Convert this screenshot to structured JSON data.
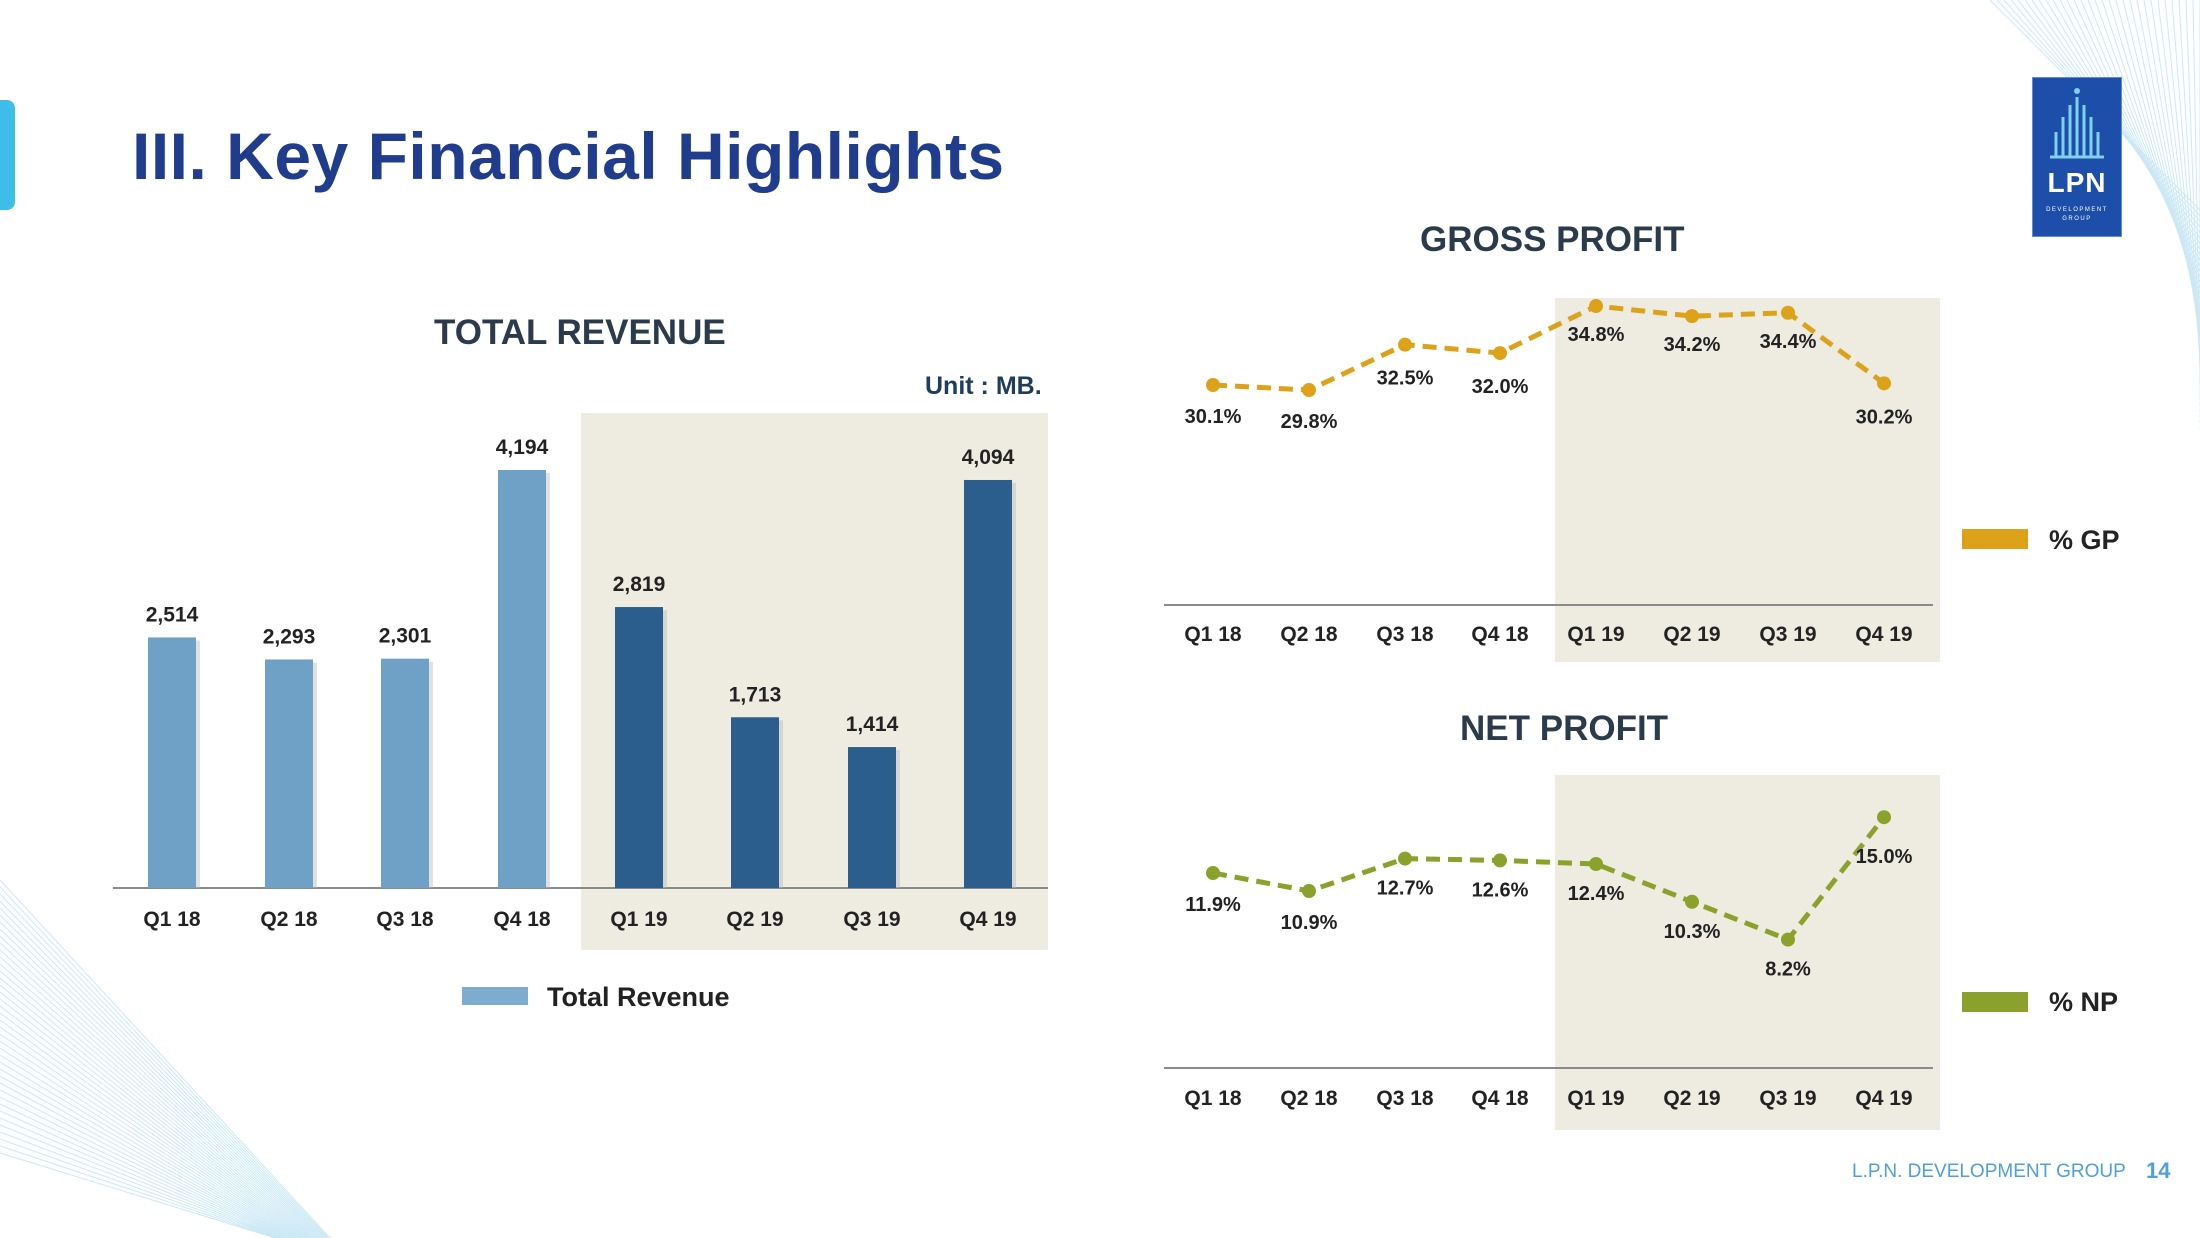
{
  "slide": {
    "title": "III. Key Financial Highlights",
    "footer_company": "L.P.N. DEVELOPMENT GROUP",
    "page_number": "14",
    "accent_color": "#3dbde8"
  },
  "logo": {
    "name": "LPN",
    "sub_line1": "DEVELOPMENT",
    "sub_line2": "GROUP",
    "color": "#1d4eaa"
  },
  "chart_data": [
    {
      "type": "bar",
      "title": "TOTAL REVENUE",
      "unit": "Unit : MB.",
      "categories": [
        "Q1 18",
        "Q2 18",
        "Q3 18",
        "Q4 18",
        "Q1 19",
        "Q2 19",
        "Q3 19",
        "Q4 19"
      ],
      "series": [
        {
          "name": "Total Revenue",
          "values": [
            2514,
            2293,
            2301,
            4194,
            2819,
            1713,
            1414,
            4094
          ]
        }
      ],
      "data_labels": [
        "2,514",
        "2,293",
        "2,301",
        "4,194",
        "2,819",
        "1,713",
        "1,414",
        "4,094"
      ],
      "ylim": [
        0,
        4194
      ],
      "highlighted_categories": [
        "Q1 19",
        "Q2 19",
        "Q3 19",
        "Q4 19"
      ],
      "colors": {
        "2018": "#6fa1c6",
        "2019": "#2b5e8c",
        "highlight_band": "#eeebe1"
      },
      "legend": "bottom"
    },
    {
      "type": "line",
      "title": "GROSS PROFIT",
      "categories": [
        "Q1 18",
        "Q2 18",
        "Q3 18",
        "Q4 18",
        "Q1 19",
        "Q2 19",
        "Q3 19",
        "Q4 19"
      ],
      "series": [
        {
          "name": "% GP",
          "values": [
            30.1,
            29.8,
            32.5,
            32.0,
            34.8,
            34.2,
            34.4,
            30.2
          ]
        }
      ],
      "data_labels": [
        "30.1%",
        "29.8%",
        "32.5%",
        "32.0%",
        "34.8%",
        "34.2%",
        "34.4%",
        "30.2%"
      ],
      "highlighted_categories": [
        "Q1 19",
        "Q2 19",
        "Q3 19",
        "Q4 19"
      ],
      "line_style": "dashed",
      "color": "#dba21a",
      "legend": "right"
    },
    {
      "type": "line",
      "title": "NET PROFIT",
      "categories": [
        "Q1 18",
        "Q2 18",
        "Q3 18",
        "Q4 18",
        "Q1 19",
        "Q2 19",
        "Q3 19",
        "Q4 19"
      ],
      "series": [
        {
          "name": "% NP",
          "values": [
            11.9,
            10.9,
            12.7,
            12.6,
            12.4,
            10.3,
            8.2,
            15.0
          ]
        }
      ],
      "data_labels": [
        "11.9%",
        "10.9%",
        "12.7%",
        "12.6%",
        "12.4%",
        "10.3%",
        "8.2%",
        "15.0%"
      ],
      "highlighted_categories": [
        "Q1 19",
        "Q2 19",
        "Q3 19",
        "Q4 19"
      ],
      "line_style": "dashed",
      "color": "#8aa22b",
      "legend": "right"
    }
  ]
}
